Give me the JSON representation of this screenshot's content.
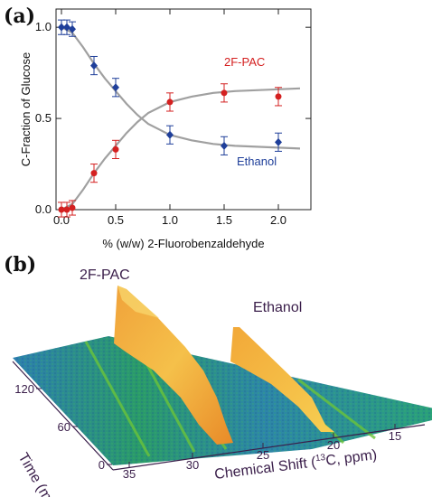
{
  "chart_data": [
    {
      "type": "scatter",
      "panel": "(a)",
      "xlabel": "% (w/w) 2-Fluorobenzaldehyde",
      "ylabel": "C-Fraction of Glucose",
      "xlim": [
        -0.05,
        2.3
      ],
      "ylim": [
        0.0,
        1.1
      ],
      "xticks": [
        "0.0",
        "0.5",
        "1.0",
        "1.5",
        "2.0"
      ],
      "yticks": [
        "0.0",
        "0.5",
        "1.0"
      ],
      "grid": false,
      "series": [
        {
          "name": "2F-PAC",
          "color": "#d42020",
          "marker": "circle",
          "x": [
            0.0,
            0.05,
            0.1,
            0.3,
            0.5,
            1.0,
            1.5,
            2.0
          ],
          "y": [
            0.0,
            0.0,
            0.01,
            0.2,
            0.33,
            0.59,
            0.64,
            0.62
          ],
          "err": [
            0.04,
            0.04,
            0.04,
            0.05,
            0.05,
            0.05,
            0.05,
            0.05
          ]
        },
        {
          "name": "Ethanol",
          "color": "#1f3f9a",
          "marker": "diamond",
          "x": [
            0.0,
            0.05,
            0.1,
            0.3,
            0.5,
            1.0,
            1.5,
            2.0
          ],
          "y": [
            1.0,
            1.0,
            0.99,
            0.79,
            0.67,
            0.41,
            0.35,
            0.37
          ],
          "err": [
            0.04,
            0.04,
            0.04,
            0.05,
            0.05,
            0.05,
            0.05,
            0.05
          ]
        }
      ],
      "fit_curves": [
        {
          "color": "#a0a0a0",
          "x": [
            0.0,
            0.1,
            0.2,
            0.3,
            0.4,
            0.5,
            0.6,
            0.7,
            0.8,
            0.9,
            1.0,
            1.2,
            1.4,
            1.6,
            1.8,
            2.0,
            2.2
          ],
          "y": [
            0.0,
            0.03,
            0.11,
            0.2,
            0.28,
            0.35,
            0.42,
            0.48,
            0.53,
            0.56,
            0.59,
            0.62,
            0.64,
            0.65,
            0.655,
            0.66,
            0.665
          ]
        },
        {
          "color": "#a0a0a0",
          "x": [
            0.0,
            0.1,
            0.2,
            0.3,
            0.4,
            0.5,
            0.6,
            0.7,
            0.8,
            0.9,
            1.0,
            1.2,
            1.4,
            1.6,
            1.8,
            2.0,
            2.2
          ],
          "y": [
            1.0,
            0.97,
            0.89,
            0.8,
            0.72,
            0.65,
            0.58,
            0.52,
            0.47,
            0.44,
            0.41,
            0.38,
            0.36,
            0.35,
            0.345,
            0.34,
            0.335
          ]
        }
      ]
    },
    {
      "type": "surface",
      "panel": "(b)",
      "peaks": [
        "2F-PAC",
        "Ethanol"
      ],
      "x_axis": {
        "title_prefix": "Chemical Shift (",
        "title_sup": "13",
        "title_suffix": "C, ppm)",
        "ticks": [
          "35",
          "30",
          "25",
          "20",
          "15"
        ]
      },
      "time_axis": {
        "title": "Time (min)",
        "ticks": [
          "0",
          "60",
          "120"
        ]
      },
      "colors": [
        "#1d6fa8",
        "#2aa05a",
        "#6bc43a",
        "#f3b13a",
        "#f6c94a"
      ]
    }
  ]
}
